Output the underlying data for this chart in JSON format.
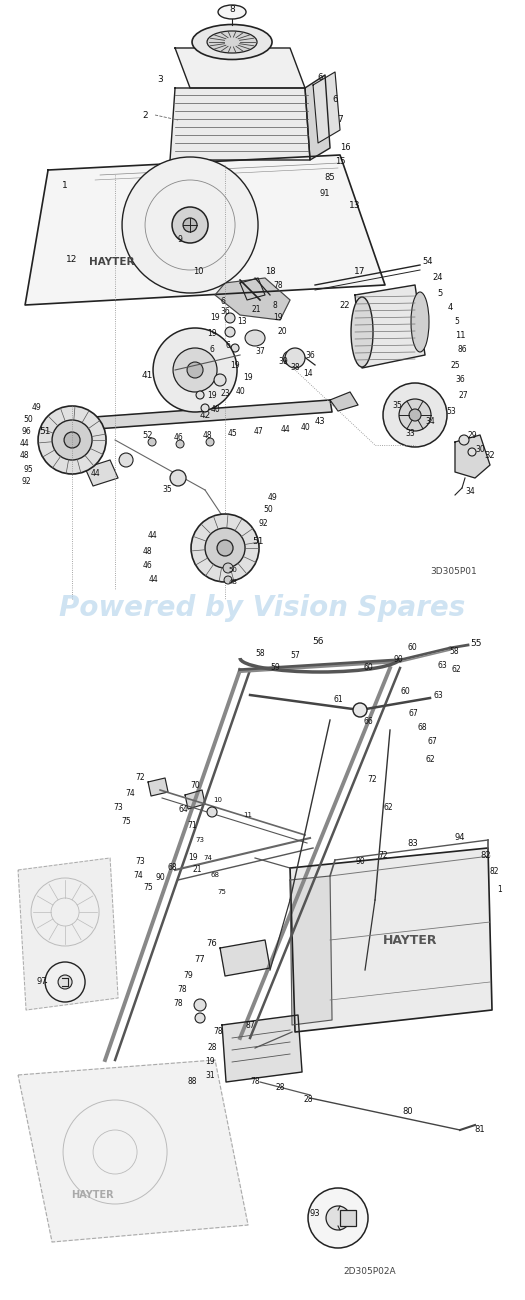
{
  "background_color": "#ffffff",
  "watermark_text": "Powered by Vision Spares",
  "watermark_color": "#a8cce8",
  "watermark_alpha": 0.55,
  "watermark_fontsize": 20,
  "diagram_code_top": "3D305P01",
  "diagram_code_bottom": "2D305P02A",
  "line_color": "#222222",
  "light_gray": "#cccccc",
  "mid_gray": "#999999",
  "fill_light": "#ebebeb",
  "fill_mid": "#d4d4d4"
}
